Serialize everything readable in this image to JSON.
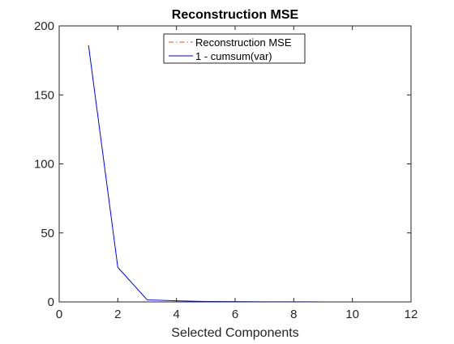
{
  "chart_data": {
    "type": "line",
    "title": "Reconstruction MSE",
    "xlabel": "Selected Components",
    "ylabel": "",
    "xlim": [
      0,
      12
    ],
    "ylim": [
      0,
      200
    ],
    "xticks": [
      0,
      2,
      4,
      6,
      8,
      10,
      12
    ],
    "yticks": [
      0,
      50,
      100,
      150,
      200
    ],
    "grid": false,
    "legend_position": "top-center",
    "series": [
      {
        "name": "Reconstruction MSE",
        "color": "#D95319",
        "line_style": "dash-dot",
        "x": [
          1,
          2,
          3,
          4,
          5,
          6,
          7,
          8,
          9,
          10,
          11
        ],
        "y": [
          0,
          0,
          0,
          0,
          0,
          0,
          0,
          0,
          0,
          0,
          0
        ]
      },
      {
        "name": "1 - cumsum(var)",
        "color": "#0000FF",
        "line_style": "solid",
        "x": [
          1,
          2,
          3,
          4,
          5,
          6,
          7,
          8,
          9,
          10,
          11
        ],
        "y": [
          186,
          25,
          1.5,
          0.8,
          0.3,
          0.2,
          0.1,
          0.05,
          0.03,
          0.02,
          0
        ]
      }
    ]
  }
}
